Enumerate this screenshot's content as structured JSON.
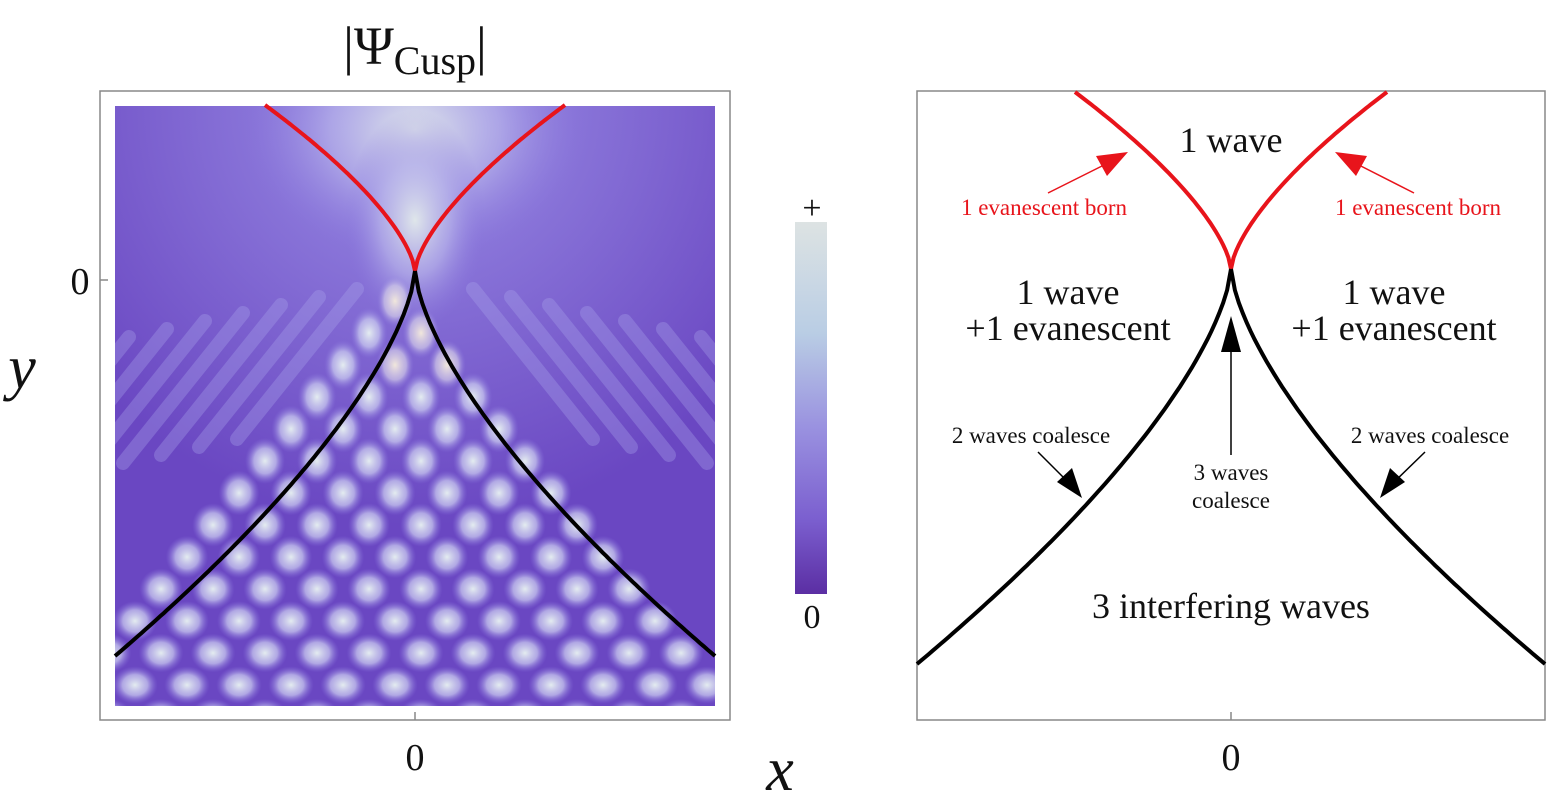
{
  "left_panel": {
    "title_prefix": "|Ψ",
    "title_sub": "Cusp",
    "title_suffix": "|",
    "y_tick": "0",
    "x_tick": "0",
    "y_label": "y",
    "x_label": "x",
    "colorbar": {
      "top_label": "+",
      "bottom_label": "0",
      "colors": [
        "#dde3e3",
        "#b9cde4",
        "#9a92e0",
        "#7b5fcf",
        "#5b2ea3"
      ]
    },
    "curve_colors": {
      "evanescent_line": "#e8141b",
      "caustic": "#000000"
    }
  },
  "right_panel": {
    "x_tick": "0",
    "region_top": "1 wave",
    "region_left_l1": "1 wave",
    "region_left_l2": "+1 evanescent",
    "region_right_l1": "1 wave",
    "region_right_l2": "+1 evanescent",
    "region_bottom": "3 interfering waves",
    "born_left": "1 evanescent born",
    "born_right": "1 evanescent born",
    "coalesce_left": "2 waves coalesce",
    "coalesce_right": "2 waves coalesce",
    "coalesce_center_l1": "3 waves",
    "coalesce_center_l2": "coalesce"
  }
}
